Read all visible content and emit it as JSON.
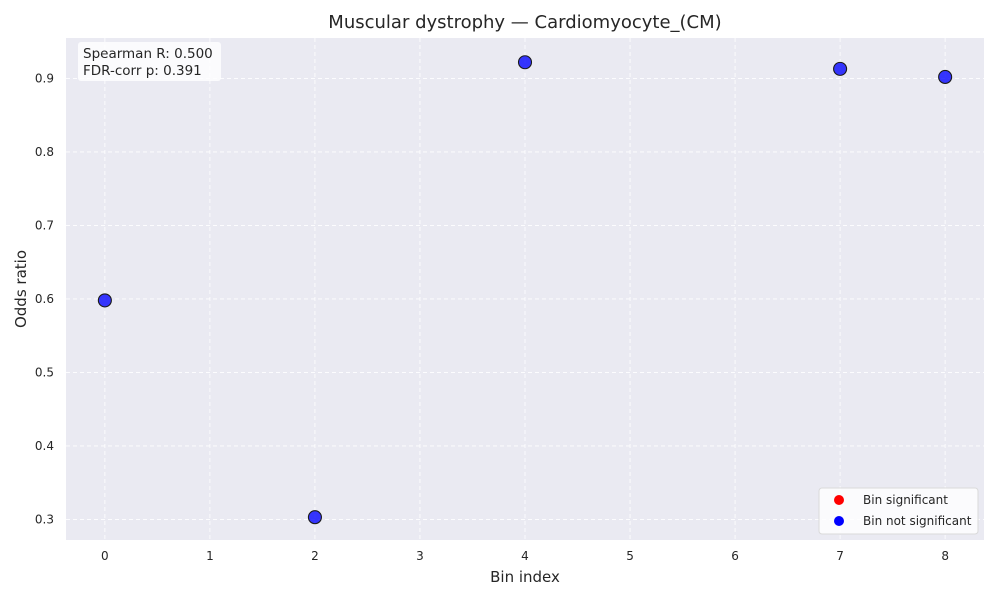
{
  "chart_data": {
    "type": "scatter",
    "title": "Muscular dystrophy — Cardiomyocyte_(CM)",
    "xlabel": "Bin index",
    "ylabel": "Odds ratio",
    "xlim": [
      -0.37,
      8.37
    ],
    "ylim": [
      0.272,
      0.955
    ],
    "xticks": [
      0,
      1,
      2,
      3,
      4,
      5,
      6,
      7,
      8
    ],
    "yticks": [
      0.3,
      0.4,
      0.5,
      0.6,
      0.7,
      0.8,
      0.9
    ],
    "ytick_labels": [
      "0.3",
      "0.4",
      "0.5",
      "0.6",
      "0.7",
      "0.8",
      "0.9"
    ],
    "grid": true,
    "series": [
      {
        "name": "Bin not significant",
        "color": "#0000ff",
        "points": [
          {
            "x": 0,
            "y": 0.598
          },
          {
            "x": 2,
            "y": 0.303
          },
          {
            "x": 4,
            "y": 0.922
          },
          {
            "x": 7,
            "y": 0.913
          },
          {
            "x": 8,
            "y": 0.902
          }
        ]
      }
    ],
    "legend": {
      "position": "bottom-right",
      "entries": [
        {
          "label": "Bin significant",
          "color": "#ff0000"
        },
        {
          "label": "Bin not significant",
          "color": "#0000ff"
        }
      ]
    },
    "stats": {
      "line1": "Spearman R: 0.500",
      "line2": "FDR-corr p: 0.391"
    }
  }
}
